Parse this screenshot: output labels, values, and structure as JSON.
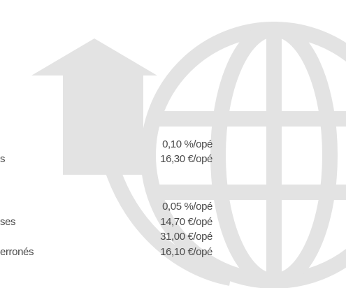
{
  "rows": [
    {
      "value": "0,10 %/opé"
    },
    {
      "label": "s",
      "value": "16,30 €/opé"
    },
    {
      "value": "0,05 %/opé"
    },
    {
      "label": "ses",
      "value": "14,70 €/opé"
    },
    {
      "value": "31,00 €/opé"
    },
    {
      "label": "erronés",
      "value": "16,10 €/opé"
    }
  ]
}
